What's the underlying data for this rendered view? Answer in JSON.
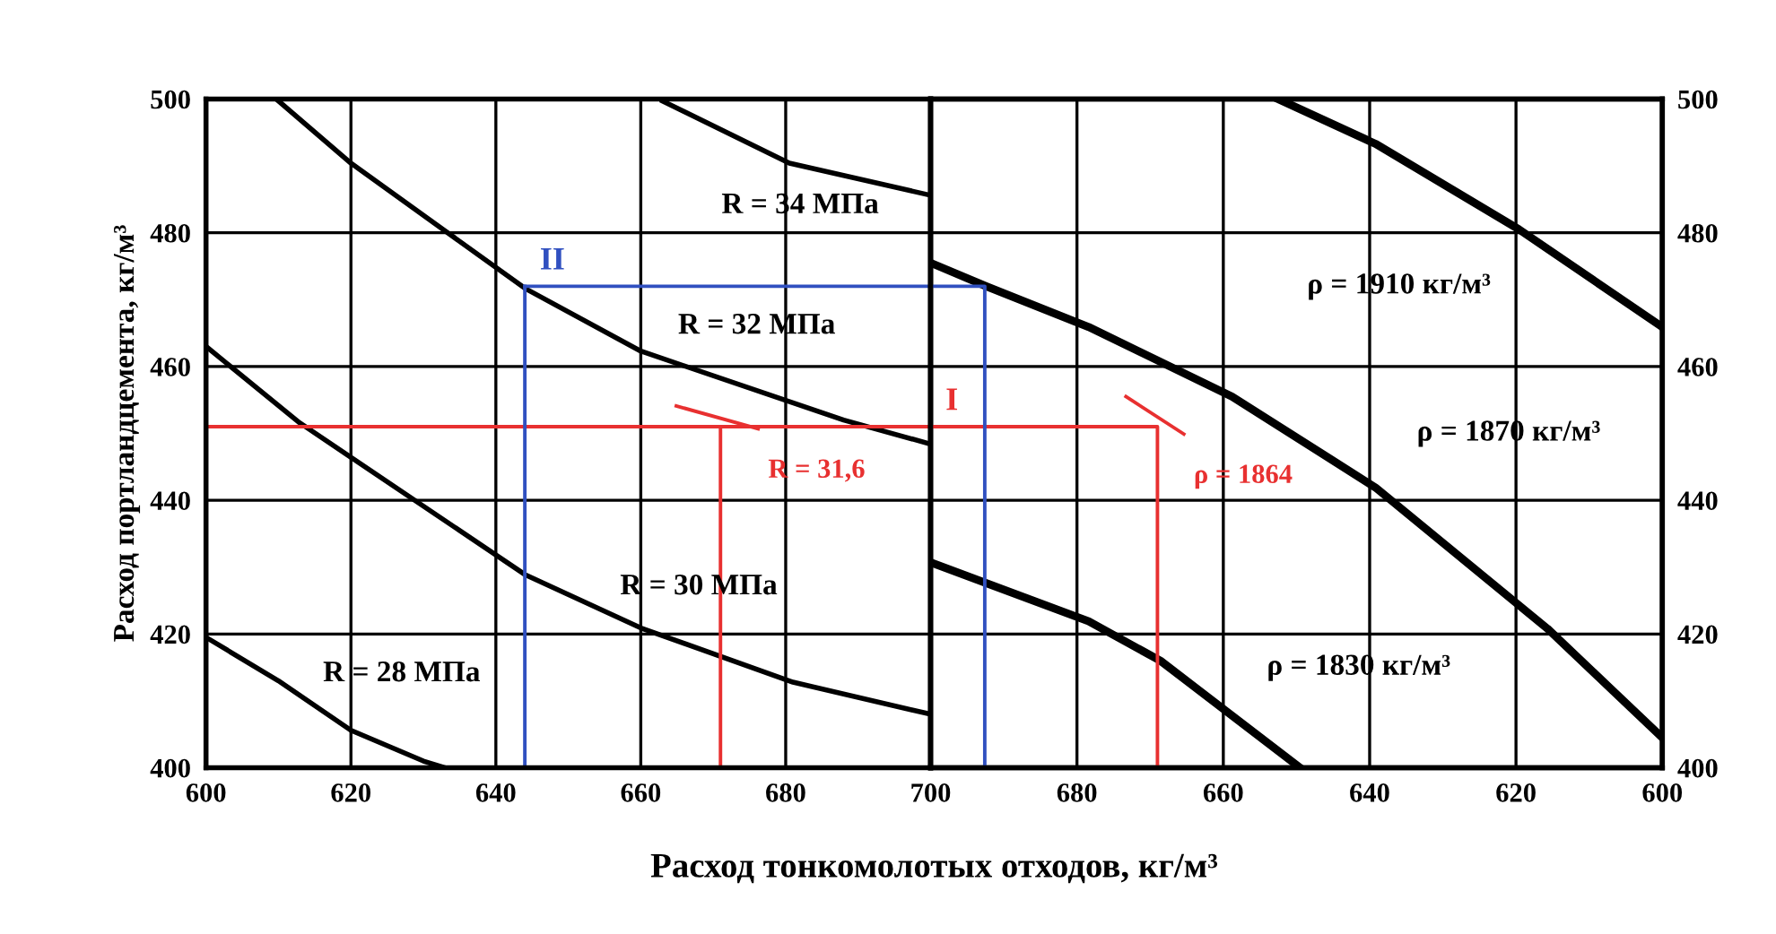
{
  "chart_data": [
    {
      "type": "line",
      "ylabel": "Расход портландцемента, кг/м³",
      "xlabel": "Расход тонкомолотых отходов, кг/м³",
      "xlim": [
        600,
        700
      ],
      "xticks": [
        600,
        620,
        640,
        660,
        680,
        700
      ],
      "ylim": [
        400,
        500
      ],
      "yticks": [
        400,
        420,
        440,
        460,
        480,
        500
      ],
      "grid": true,
      "series": [
        {
          "name": "R = 28 МПа",
          "color": "#000000",
          "x": [
            600,
            610,
            620,
            630,
            633
          ],
          "values": [
            419.5,
            413,
            405.6,
            401,
            400
          ]
        },
        {
          "name": "R = 30 МПа",
          "color": "#000000",
          "x": [
            600,
            612.9,
            644,
            660,
            681,
            700
          ],
          "values": [
            463,
            451.6,
            428.9,
            420.9,
            412.8,
            408
          ]
        },
        {
          "name": "R = 32 МПа",
          "color": "#000000",
          "x": [
            610,
            620,
            644,
            660,
            688,
            700
          ],
          "values": [
            499.7,
            490.4,
            471.7,
            462.3,
            452,
            448.4
          ]
        },
        {
          "name": "R = 34 МПа",
          "color": "#000000",
          "x": [
            663,
            680.5,
            700
          ],
          "values": [
            499.7,
            490.4,
            485.6
          ]
        },
        {
          "color": "#e83030",
          "x": [
            671,
            671
          ],
          "values": [
            400,
            451
          ]
        },
        {
          "color": "#e83030",
          "x": [
            600,
            700
          ],
          "values": [
            451,
            451
          ]
        },
        {
          "name": "R = 31,6",
          "color": "#e83030",
          "x": [
            676.2,
            664.9
          ],
          "values": [
            450.7,
            454.1
          ]
        },
        {
          "name": "II",
          "color": "#3050c0",
          "x": [
            644,
            700
          ],
          "values": [
            472,
            472
          ]
        },
        {
          "color": "#3050c0",
          "x": [
            644,
            644
          ],
          "values": [
            472,
            400
          ]
        }
      ]
    },
    {
      "type": "line",
      "xlim": [
        700,
        600
      ],
      "xticks": [
        {
          "value": 700,
          "label": null
        },
        680,
        660,
        640,
        620,
        600
      ],
      "y2lim": [
        400,
        500
      ],
      "y2ticks": [
        400,
        420,
        440,
        460,
        480,
        500
      ],
      "grid": true,
      "series": [
        {
          "axis": "y2",
          "name": "ρ = 1910 кг/м³",
          "color": "#000000",
          "x": [
            652.5,
            639.2,
            619.6,
            600
          ],
          "values": [
            500,
            493.3,
            480.5,
            465.9
          ]
        },
        {
          "axis": "y2",
          "name": "ρ = 1870 кг/м³",
          "color": "#000000",
          "x": [
            700,
            692.4,
            678.4,
            658.8,
            639.2,
            615.7,
            600
          ],
          "values": [
            475.5,
            472,
            465.9,
            455.5,
            441.9,
            420.8,
            404.5
          ]
        },
        {
          "axis": "y2",
          "name": "ρ = 1830 кг/м³",
          "color": "#000000",
          "x": [
            700,
            678.4,
            668.6,
            649.5
          ],
          "values": [
            430.7,
            421.9,
            416,
            400
          ]
        },
        {
          "axis": "y2",
          "name": "I",
          "color": "#e83030",
          "x": [
            700,
            669,
            669
          ],
          "values": [
            451,
            451,
            400
          ]
        },
        {
          "axis": "y2",
          "name": "ρ = 1864",
          "color": "#e83030",
          "x": [
            665.4,
            673.3
          ],
          "values": [
            449.9,
            455.5
          ]
        },
        {
          "axis": "y2",
          "color": "#3050c0",
          "x": [
            700,
            692.6,
            692.6
          ],
          "values": [
            472,
            472,
            400
          ]
        }
      ]
    }
  ]
}
